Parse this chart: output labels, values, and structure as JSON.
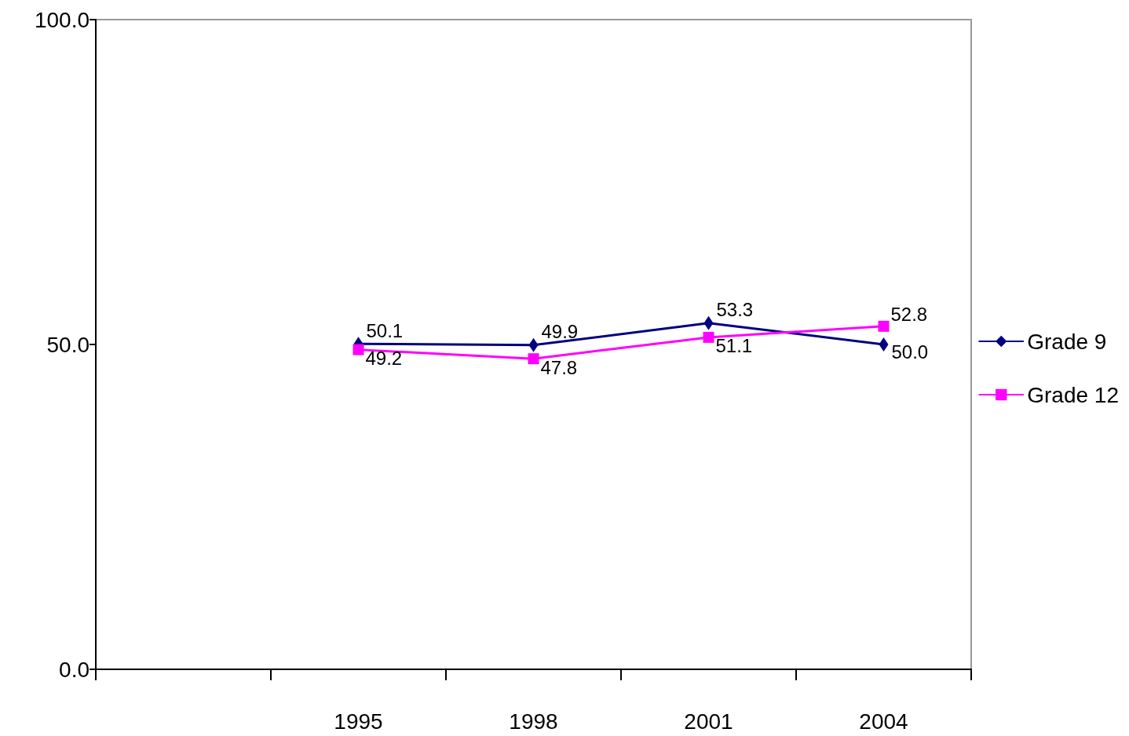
{
  "chart_data": {
    "type": "line",
    "categories": [
      null,
      "1995",
      "1998",
      "2001",
      "2004"
    ],
    "series": [
      {
        "name": "Grade 9",
        "color": "#000080",
        "marker": "diamond",
        "values": [
          null,
          50.1,
          49.9,
          53.3,
          50.0
        ],
        "value_labels": [
          null,
          "50.1",
          "49.9",
          "53.3",
          "50.0"
        ]
      },
      {
        "name": "Grade 12",
        "color": "#ff00ff",
        "marker": "square",
        "values": [
          null,
          49.2,
          47.8,
          51.1,
          52.8
        ],
        "value_labels": [
          null,
          "49.2",
          "47.8",
          "51.1",
          "52.8"
        ]
      }
    ],
    "ylim": [
      0,
      100
    ],
    "yticks": [
      {
        "value": 0,
        "label": "0.0"
      },
      {
        "value": 50,
        "label": "50.0"
      },
      {
        "value": 100,
        "label": "100.0"
      }
    ],
    "grid": false,
    "legend": "right",
    "line_style": "solid"
  }
}
